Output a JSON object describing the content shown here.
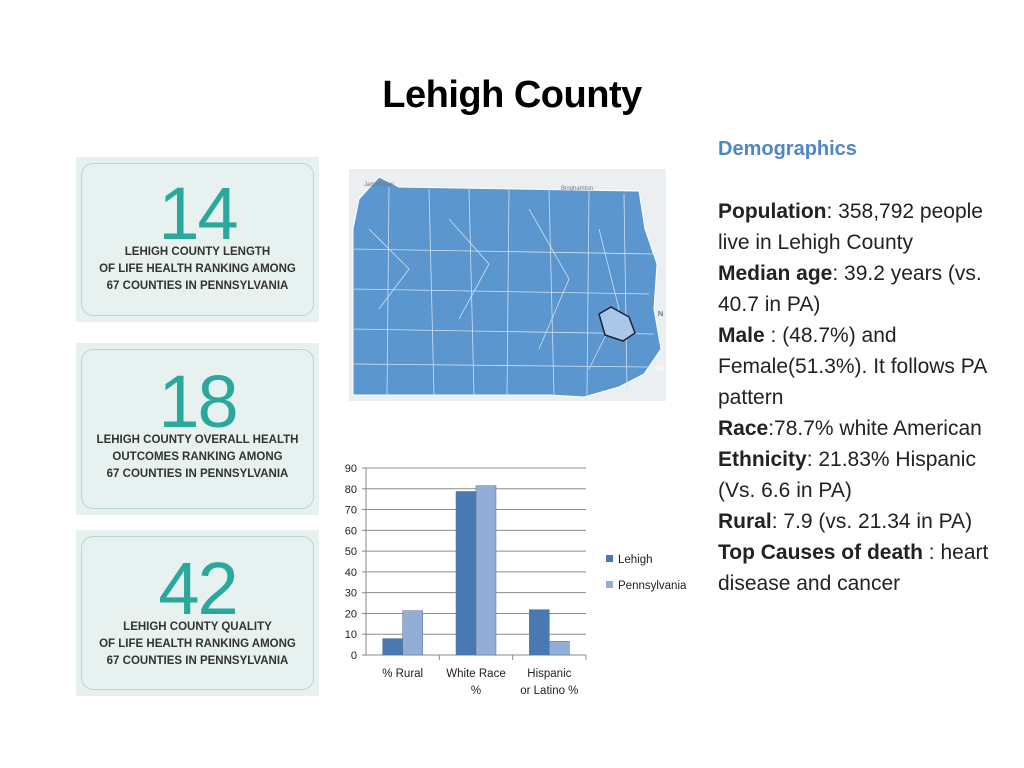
{
  "title": "Lehigh County",
  "cards": [
    {
      "number": "14",
      "lines": [
        "LEHIGH COUNTY LENGTH",
        "OF LIFE HEALTH RANKING AMONG",
        "67 COUNTIES IN PENNSYLVANIA"
      ]
    },
    {
      "number": "18",
      "lines": [
        "LEHIGH COUNTY OVERALL HEALTH",
        "OUTCOMES RANKING AMONG",
        "67 COUNTIES IN PENNSYLVANIA"
      ]
    },
    {
      "number": "42",
      "lines": [
        "LEHIGH COUNTY QUALITY",
        "OF LIFE HEALTH RANKING AMONG",
        "67 COUNTIES IN PENNSYLVANIA"
      ]
    }
  ],
  "map": {
    "labels": [
      "Jamestown",
      "Binghamton",
      "NE",
      "N",
      "Lehigh"
    ]
  },
  "demographics": {
    "heading": "Demographics",
    "population_label": "Population",
    "population_text": ": 358,792 people live in Lehigh County",
    "median_age_label": "Median age",
    "median_age_text": ":  39.2 years (vs. 40.7 in PA)",
    "male_label": "Male",
    "male_text": " : (48.7%) and Female(51.3%). It follows PA pattern",
    "race_label": "Race",
    "race_text": ":78.7% white American",
    "ethnicity_label": "Ethnicity",
    "ethnicity_text": ": 21.83% Hispanic (Vs. 6.6 in PA)",
    "rural_label": "Rural",
    "rural_text": ": 7.9 (vs. 21.34 in PA)",
    "causes_label": "Top Causes of death",
    "causes_text": " : heart disease and cancer"
  },
  "chart_data": {
    "type": "bar",
    "categories": [
      [
        "% Rural"
      ],
      [
        "White Race",
        "%"
      ],
      [
        "Hispanic",
        "or Latino %"
      ]
    ],
    "series": [
      {
        "name": "Lehigh",
        "values": [
          7.9,
          78.7,
          21.83
        ],
        "color": "#4a78b3"
      },
      {
        "name": "Pennsylvania",
        "values": [
          21.34,
          81.5,
          6.6
        ],
        "color": "#93aed6"
      }
    ],
    "ylim": [
      0,
      90
    ],
    "yticks": [
      0,
      10,
      20,
      30,
      40,
      50,
      60,
      70,
      80,
      90
    ],
    "grid": true,
    "legend": "right"
  }
}
